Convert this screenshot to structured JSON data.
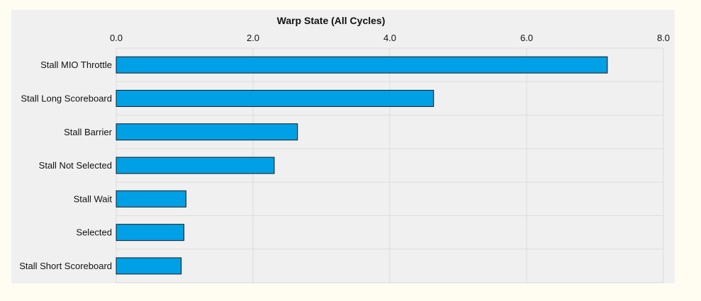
{
  "colors": {
    "bar_fill": "#00a0e6",
    "bar_stroke": "#1a1a1a",
    "plot_background": "#f0f0f0",
    "page_background": "#fffdf2",
    "grid": "#dcdcdc"
  },
  "chart_data": {
    "type": "bar",
    "orientation": "horizontal",
    "title": "Warp State (All Cycles)",
    "xlabel": "",
    "ylabel": "",
    "xlim": [
      0,
      8
    ],
    "x_ticks": [
      "0.0",
      "2.0",
      "4.0",
      "6.0",
      "8.0"
    ],
    "x_axis_position": "top",
    "grid": true,
    "categories": [
      "Stall MIO Throttle",
      "Stall Long Scoreboard",
      "Stall Barrier",
      "Stall Not Selected",
      "Stall Wait",
      "Selected",
      "Stall Short Scoreboard"
    ],
    "values": [
      7.18,
      4.64,
      2.65,
      2.31,
      1.02,
      0.99,
      0.95
    ]
  }
}
